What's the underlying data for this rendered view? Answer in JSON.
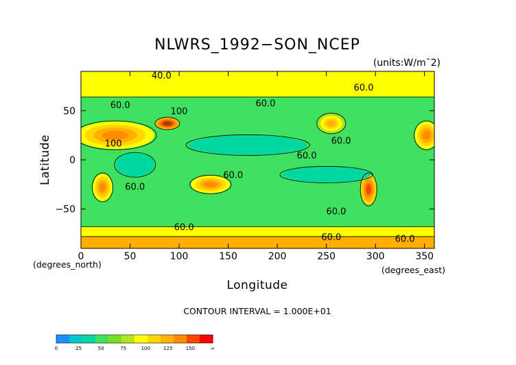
{
  "chart_data": {
    "type": "heatmap",
    "title": "NLWRS_1992−SON_NCEP",
    "units": "(units:W/m¯2)",
    "xlabel": "Longitude",
    "ylabel": "Latitude",
    "x_unit": "(degrees_east)",
    "y_unit": "(degrees_north)",
    "xlim": [
      0,
      360
    ],
    "ylim": [
      -90,
      90
    ],
    "x_ticks": [
      "0",
      "50",
      "100",
      "150",
      "200",
      "250",
      "300",
      "350"
    ],
    "y_ticks": [
      "−50",
      "0",
      "50"
    ],
    "x_tick_values": [
      0,
      50,
      100,
      150,
      200,
      250,
      300,
      350
    ],
    "y_tick_values": [
      -50,
      0,
      50
    ],
    "contour_interval": "CONTOUR INTERVAL = 1.000E+01",
    "contour_labels": [
      {
        "text": "40.0",
        "lon": 82,
        "lat": 86
      },
      {
        "text": "60.0",
        "lon": 40,
        "lat": 56
      },
      {
        "text": "60.0",
        "lon": 188,
        "lat": 58
      },
      {
        "text": "60.0",
        "lon": 288,
        "lat": 74
      },
      {
        "text": "60.0",
        "lon": 265,
        "lat": 20
      },
      {
        "text": "60.0",
        "lon": 230,
        "lat": 5
      },
      {
        "text": "60.0",
        "lon": 155,
        "lat": -15
      },
      {
        "text": "60.0",
        "lon": 55,
        "lat": -27
      },
      {
        "text": "60.0",
        "lon": 260,
        "lat": -52
      },
      {
        "text": "60.0",
        "lon": 105,
        "lat": -68
      },
      {
        "text": "60.0",
        "lon": 255,
        "lat": -78
      },
      {
        "text": "60.0",
        "lon": 330,
        "lat": -80
      },
      {
        "text": "100",
        "lon": 33,
        "lat": 17
      },
      {
        "text": "100",
        "lon": 100,
        "lat": 50
      }
    ],
    "colorbar": {
      "labels": [
        "0",
        "25",
        "50",
        "75",
        "100",
        "125",
        "150",
        "∞"
      ],
      "colors": [
        "#1e90ff",
        "#00c8c8",
        "#00d8a0",
        "#40e060",
        "#78e020",
        "#b4e61e",
        "#ffff00",
        "#ffd700",
        "#ffb000",
        "#ff8c00",
        "#ff4500",
        "#ff0000"
      ]
    },
    "field_levels": {
      "colors": [
        "#00d8a0",
        "#40e060",
        "#78e020",
        "#b4e61e",
        "#ffff00",
        "#ffd700",
        "#ffb000",
        "#ff8c00",
        "#ff4500",
        "#8b4513"
      ],
      "background_color": "#40e060",
      "features": [
        {
          "kind": "band",
          "lat": [
            64,
            90
          ],
          "level": 4
        },
        {
          "kind": "band",
          "lat": [
            -90,
            -68
          ],
          "level": 4
        },
        {
          "kind": "band",
          "lat": [
            -90,
            -78
          ],
          "level": 6
        },
        {
          "kind": "blob",
          "lon": 35,
          "lat": 25,
          "rlon": 40,
          "rlat": 14,
          "level": 7
        },
        {
          "kind": "blob",
          "lon": 88,
          "lat": 37,
          "rlon": 12,
          "rlat": 6,
          "level": 9
        },
        {
          "kind": "blob",
          "lon": 255,
          "lat": 37,
          "rlon": 14,
          "rlat": 10,
          "level": 6
        },
        {
          "kind": "blob",
          "lon": 352,
          "lat": 25,
          "rlon": 12,
          "rlat": 14,
          "level": 7
        },
        {
          "kind": "blob",
          "lon": 132,
          "lat": -25,
          "rlon": 20,
          "rlat": 9,
          "level": 7
        },
        {
          "kind": "blob",
          "lon": 22,
          "lat": -28,
          "rlon": 10,
          "rlat": 14,
          "level": 7
        },
        {
          "kind": "blob",
          "lon": 293,
          "lat": -30,
          "rlon": 8,
          "rlat": 16,
          "level": 8
        },
        {
          "kind": "blob",
          "lon": 170,
          "lat": 15,
          "rlon": 60,
          "rlat": 10,
          "level": 0
        },
        {
          "kind": "blob",
          "lon": 250,
          "lat": -15,
          "rlon": 45,
          "rlat": 8,
          "level": 0
        },
        {
          "kind": "blob",
          "lon": 55,
          "lat": -5,
          "rlon": 20,
          "rlat": 12,
          "level": 0
        }
      ]
    }
  }
}
